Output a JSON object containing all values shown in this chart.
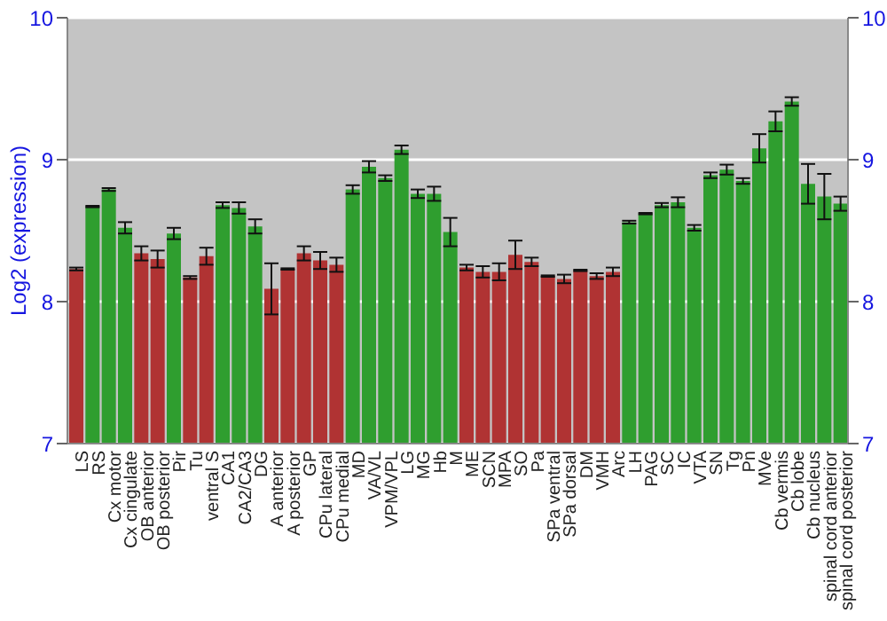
{
  "chart_data": {
    "type": "bar",
    "ylabel": "Log2 (expression)",
    "categories": [
      "LS",
      "RS",
      "Cx motor",
      "Cx cingulate",
      "OB anterior",
      "OB posterior",
      "Pir",
      "Tu",
      "ventral S",
      "CA1",
      "CA2/CA3",
      "DG",
      "A anterior",
      "A posterior",
      "GP",
      "CPu lateral",
      "CPu medial",
      "MD",
      "VA/VL",
      "VPM/VPL",
      "LG",
      "MG",
      "Hb",
      "M",
      "ME",
      "SCN",
      "MPA",
      "SO",
      "Pa",
      "SPa ventral",
      "SPa dorsal",
      "DM",
      "VMH",
      "Arc",
      "LH",
      "PAG",
      "SC",
      "IC",
      "VTA",
      "SN",
      "Tg",
      "Pn",
      "MVe",
      "Cb vermis",
      "Cb lobe",
      "Cb nucleus",
      "spinal cord anterior",
      "spinal cord posterior"
    ],
    "values": [
      8.23,
      8.67,
      8.79,
      8.52,
      8.34,
      8.3,
      8.48,
      8.17,
      8.32,
      8.68,
      8.66,
      8.53,
      8.09,
      8.23,
      8.34,
      8.29,
      8.26,
      8.79,
      8.95,
      8.87,
      9.07,
      8.76,
      8.76,
      8.49,
      8.24,
      8.21,
      8.21,
      8.33,
      8.28,
      8.18,
      8.16,
      8.22,
      8.18,
      8.21,
      8.56,
      8.62,
      8.68,
      8.7,
      8.52,
      8.89,
      8.93,
      8.85,
      9.08,
      9.27,
      9.41,
      8.83,
      8.74,
      8.69
    ],
    "errors": [
      0.01,
      0.005,
      0.01,
      0.04,
      0.05,
      0.06,
      0.04,
      0.01,
      0.06,
      0.02,
      0.04,
      0.05,
      0.18,
      0.005,
      0.05,
      0.06,
      0.05,
      0.03,
      0.04,
      0.02,
      0.03,
      0.03,
      0.05,
      0.1,
      0.02,
      0.04,
      0.06,
      0.1,
      0.03,
      0.005,
      0.03,
      0.005,
      0.02,
      0.03,
      0.01,
      0.005,
      0.015,
      0.035,
      0.02,
      0.02,
      0.035,
      0.02,
      0.1,
      0.07,
      0.03,
      0.14,
      0.16,
      0.05
    ],
    "colors": [
      "#b03333",
      "#2f9e2f",
      "#2f9e2f",
      "#2f9e2f",
      "#b03333",
      "#b03333",
      "#2f9e2f",
      "#b03333",
      "#b03333",
      "#2f9e2f",
      "#2f9e2f",
      "#2f9e2f",
      "#b03333",
      "#b03333",
      "#b03333",
      "#b03333",
      "#b03333",
      "#2f9e2f",
      "#2f9e2f",
      "#2f9e2f",
      "#2f9e2f",
      "#2f9e2f",
      "#2f9e2f",
      "#2f9e2f",
      "#b03333",
      "#b03333",
      "#b03333",
      "#b03333",
      "#b03333",
      "#b03333",
      "#b03333",
      "#b03333",
      "#b03333",
      "#b03333",
      "#2f9e2f",
      "#2f9e2f",
      "#2f9e2f",
      "#2f9e2f",
      "#2f9e2f",
      "#2f9e2f",
      "#2f9e2f",
      "#2f9e2f",
      "#2f9e2f",
      "#2f9e2f",
      "#2f9e2f",
      "#2f9e2f",
      "#2f9e2f",
      "#2f9e2f"
    ],
    "ylim": [
      7,
      10
    ],
    "yticks": [
      7,
      8,
      9,
      10
    ],
    "y2lim": [
      7,
      10
    ],
    "y2ticks": [
      7,
      8,
      9,
      10
    ],
    "grid": "y"
  }
}
